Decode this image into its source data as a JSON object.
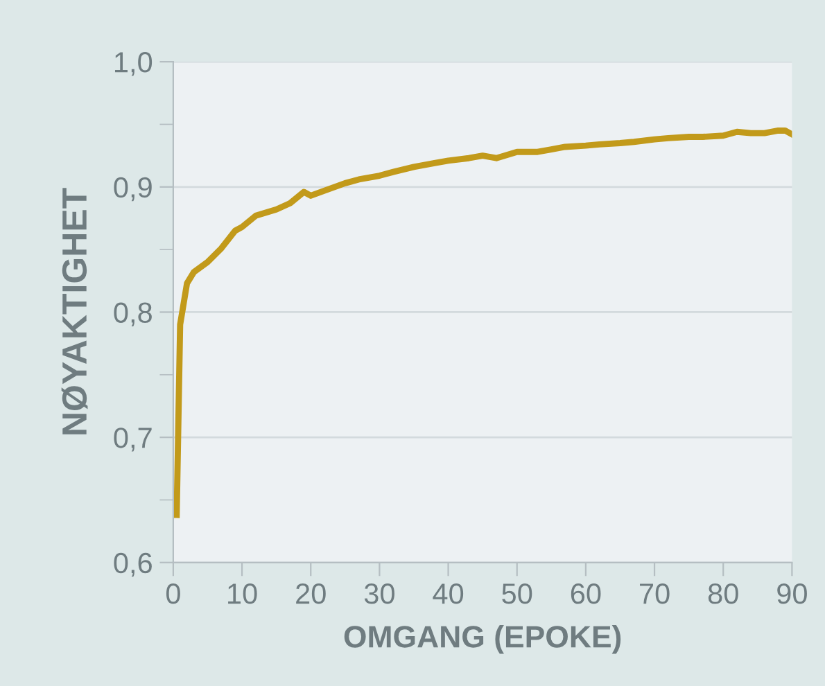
{
  "chart_data": {
    "type": "line",
    "xlabel": "OMGANG (EPOKE)",
    "ylabel": "NØYAKTIGHET",
    "x": [
      0.5,
      1,
      2,
      3,
      5,
      7,
      9,
      10,
      12,
      15,
      17,
      19,
      20,
      22,
      25,
      27,
      30,
      32,
      35,
      38,
      40,
      43,
      45,
      47,
      50,
      53,
      55,
      57,
      60,
      62,
      65,
      67,
      70,
      72,
      75,
      77,
      80,
      82,
      84,
      86,
      88,
      89,
      90
    ],
    "series": [
      {
        "color": "#c29a1a",
        "values": [
          0.638,
          0.79,
          0.823,
          0.832,
          0.84,
          0.851,
          0.865,
          0.868,
          0.877,
          0.882,
          0.887,
          0.896,
          0.893,
          0.897,
          0.903,
          0.906,
          0.909,
          0.912,
          0.916,
          0.919,
          0.921,
          0.923,
          0.925,
          0.923,
          0.928,
          0.928,
          0.93,
          0.932,
          0.933,
          0.934,
          0.935,
          0.936,
          0.938,
          0.939,
          0.94,
          0.94,
          0.941,
          0.944,
          0.943,
          0.943,
          0.945,
          0.945,
          0.942
        ]
      }
    ],
    "xlim": [
      0,
      90
    ],
    "xticks": [
      0,
      10,
      20,
      30,
      40,
      50,
      60,
      70,
      80,
      90
    ],
    "ylim": [
      0.6,
      1.0
    ],
    "yticks": [
      {
        "value": 0.6,
        "label": "0,6"
      },
      {
        "value": 0.65,
        "label": null
      },
      {
        "value": 0.7,
        "label": "0,7"
      },
      {
        "value": 0.75,
        "label": null
      },
      {
        "value": 0.8,
        "label": "0,8"
      },
      {
        "value": 0.85,
        "label": null
      },
      {
        "value": 0.9,
        "label": "0,9"
      },
      {
        "value": 0.95,
        "label": null
      },
      {
        "value": 1.0,
        "label": "1,0"
      }
    ],
    "grid": "y",
    "marker": "none",
    "line_style": "solid"
  }
}
